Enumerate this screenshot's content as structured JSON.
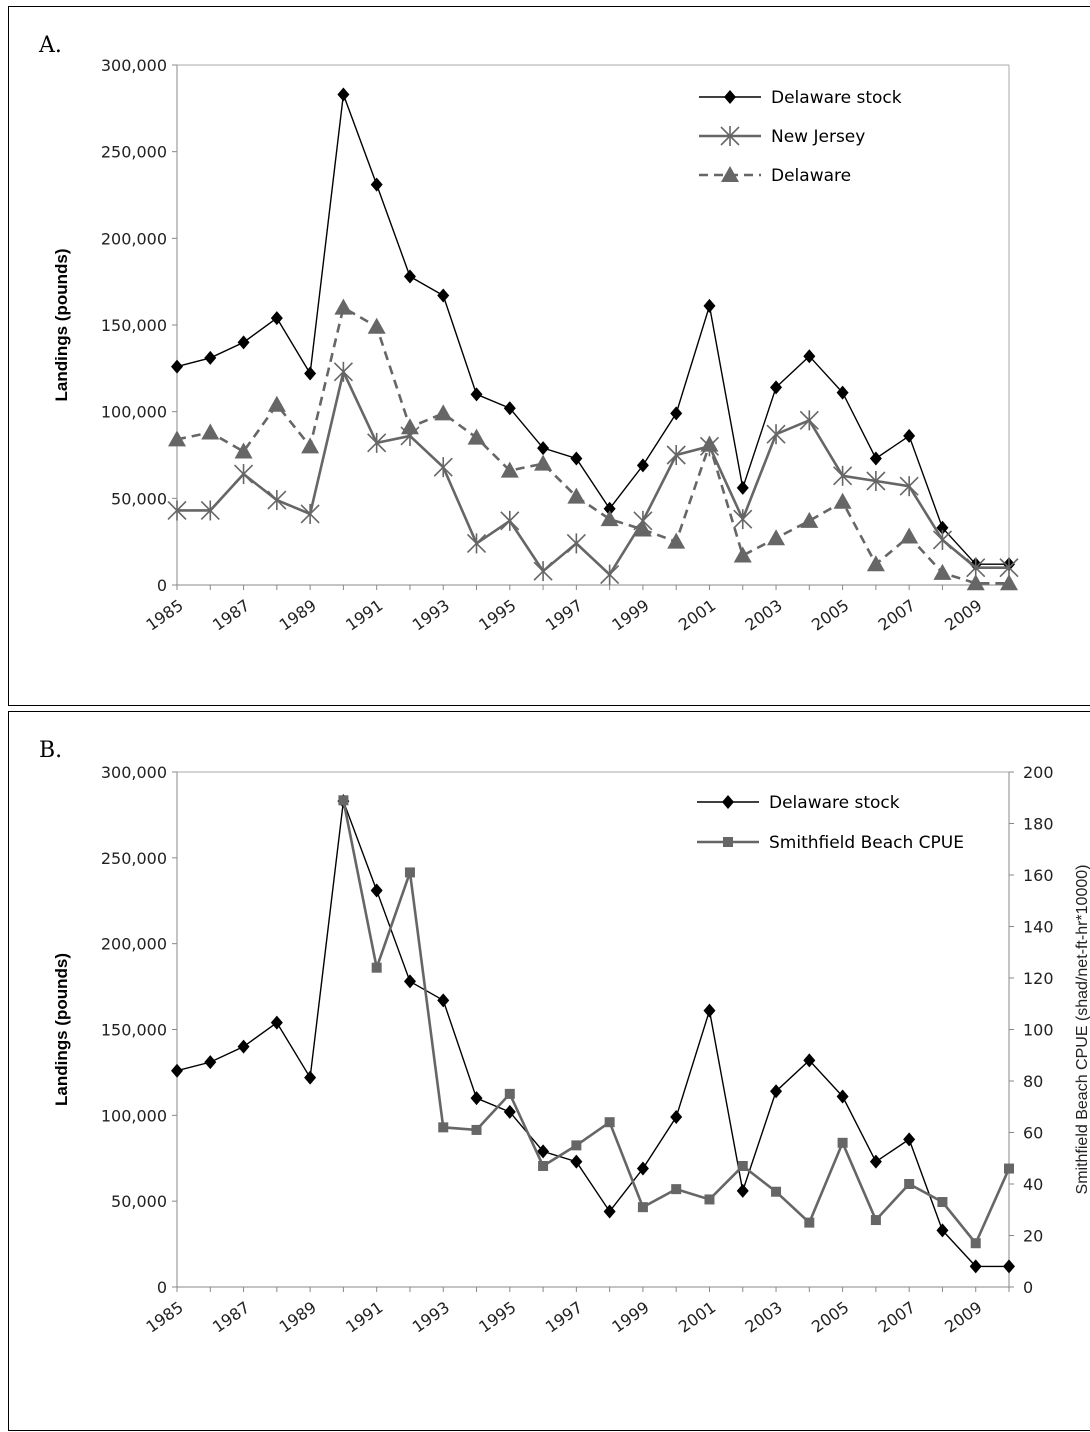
{
  "chart_data": [
    {
      "type": "line",
      "panel_label": "A.",
      "title": "",
      "xlabel": "",
      "ylabel": "Landings (pounds)",
      "ylim": [
        0,
        300000
      ],
      "yticks": [
        "0",
        "50,000",
        "100,000",
        "150,000",
        "200,000",
        "250,000",
        "300,000"
      ],
      "x": [
        1985,
        1986,
        1987,
        1988,
        1989,
        1990,
        1991,
        1992,
        1993,
        1994,
        1995,
        1996,
        1997,
        1998,
        1999,
        2000,
        2001,
        2002,
        2003,
        2004,
        2005,
        2006,
        2007,
        2008,
        2009,
        2010
      ],
      "xtick_labels": [
        "1985",
        "1987",
        "1989",
        "1991",
        "1993",
        "1995",
        "1997",
        "1999",
        "2001",
        "2003",
        "2005",
        "2007",
        "2009"
      ],
      "legend_position": "top-right",
      "grid": false,
      "series": [
        {
          "name": "Delaware stock",
          "color": "#000000",
          "marker": "diamond",
          "dash": "solid",
          "values": [
            126000,
            131000,
            140000,
            154000,
            122000,
            283000,
            231000,
            178000,
            167000,
            110000,
            102000,
            79000,
            73000,
            44000,
            69000,
            99000,
            161000,
            56000,
            114000,
            132000,
            111000,
            73000,
            86000,
            33000,
            12000,
            12000
          ]
        },
        {
          "name": "New Jersey",
          "color": "#666666",
          "marker": "star",
          "dash": "solid",
          "values": [
            43000,
            43000,
            64000,
            49000,
            41000,
            123000,
            82000,
            86000,
            68000,
            24000,
            37000,
            8000,
            24000,
            6000,
            37000,
            75000,
            80000,
            38000,
            87000,
            95000,
            63000,
            60000,
            57000,
            26000,
            10000,
            10000
          ]
        },
        {
          "name": "Delaware",
          "color": "#666666",
          "marker": "triangle",
          "dash": "dashed",
          "values": [
            84000,
            88000,
            77000,
            104000,
            80000,
            160000,
            149000,
            91000,
            99000,
            85000,
            66000,
            70000,
            51000,
            38000,
            32000,
            25000,
            81000,
            17000,
            27000,
            37000,
            48000,
            12000,
            28000,
            7000,
            1000,
            1000
          ]
        }
      ]
    },
    {
      "type": "line",
      "panel_label": "B.",
      "title": "",
      "xlabel": "",
      "ylabel": "Landings (pounds)",
      "ylabel_right": "Smithfield Beach CPUE (shad/net-ft-hr*10000)",
      "ylim": [
        0,
        300000
      ],
      "ylim_right": [
        0,
        200
      ],
      "yticks": [
        "0",
        "50,000",
        "100,000",
        "150,000",
        "200,000",
        "250,000",
        "300,000"
      ],
      "yticks_right": [
        "0",
        "20",
        "40",
        "60",
        "80",
        "100",
        "120",
        "140",
        "160",
        "180",
        "200"
      ],
      "x": [
        1985,
        1986,
        1987,
        1988,
        1989,
        1990,
        1991,
        1992,
        1993,
        1994,
        1995,
        1996,
        1997,
        1998,
        1999,
        2000,
        2001,
        2002,
        2003,
        2004,
        2005,
        2006,
        2007,
        2008,
        2009,
        2010
      ],
      "xtick_labels": [
        "1985",
        "1987",
        "1989",
        "1991",
        "1993",
        "1995",
        "1997",
        "1999",
        "2001",
        "2003",
        "2005",
        "2007",
        "2009"
      ],
      "legend_position": "top-right",
      "grid": false,
      "series": [
        {
          "name": "Delaware stock",
          "axis": "left",
          "color": "#000000",
          "marker": "diamond",
          "values": [
            126000,
            131000,
            140000,
            154000,
            122000,
            283000,
            231000,
            178000,
            167000,
            110000,
            102000,
            79000,
            73000,
            44000,
            69000,
            99000,
            161000,
            56000,
            114000,
            132000,
            111000,
            73000,
            86000,
            33000,
            12000,
            12000
          ]
        },
        {
          "name": "Smithfield Beach CPUE",
          "axis": "right",
          "color": "#666666",
          "marker": "square",
          "x": [
            1990,
            1991,
            1992,
            1993,
            1994,
            1995,
            1996,
            1997,
            1998,
            1999,
            2000,
            2001,
            2002,
            2003,
            2004,
            2005,
            2006,
            2007,
            2008,
            2009,
            2010
          ],
          "values": [
            189,
            124,
            161,
            62,
            61,
            75,
            47,
            55,
            64,
            31,
            38,
            34,
            47,
            37,
            25,
            56,
            26,
            40,
            33,
            17,
            46
          ]
        }
      ]
    }
  ]
}
